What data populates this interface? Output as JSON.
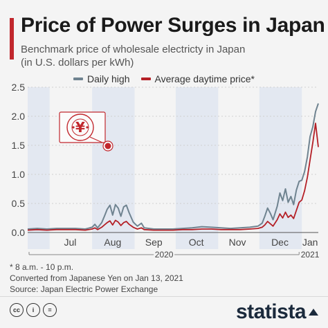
{
  "header": {
    "title": "Price of Power Surges in Japan",
    "subtitle_line1": "Benchmark price of wholesale electricty in Japan",
    "subtitle_line2": "(in U.S. dollars per kWh)"
  },
  "colors": {
    "accent": "#c1272d",
    "daily_high": "#6f8390",
    "average_daytime": "#b41f26",
    "month_band": "#e3e8f1",
    "brand": "#1b2a3c"
  },
  "icon": {
    "name": "yen-socket-icon"
  },
  "chart_data": {
    "type": "line",
    "x_unit": "date",
    "xlim": [
      "2020-06-15",
      "2021-01-13"
    ],
    "ylim": [
      0,
      2.5
    ],
    "yticks": [
      0.0,
      0.5,
      1.0,
      1.5,
      2.0,
      2.5
    ],
    "ytick_labels": [
      "0.0",
      "0.5",
      "1.0",
      "1.5",
      "2.0",
      "2.5"
    ],
    "grid": true,
    "legend_placement": "top-center",
    "month_labels": [
      {
        "label": "Jul",
        "center": "2020-07-16"
      },
      {
        "label": "Aug",
        "center": "2020-08-16"
      },
      {
        "label": "Sep",
        "center": "2020-09-15"
      },
      {
        "label": "Oct",
        "center": "2020-10-16"
      },
      {
        "label": "Nov",
        "center": "2020-11-15"
      },
      {
        "label": "Dec",
        "center": "2020-12-16"
      },
      {
        "label": "Jan",
        "center": "2021-01-07"
      }
    ],
    "shaded_months": [
      [
        "2020-06-15",
        "2020-07-01"
      ],
      [
        "2020-08-01",
        "2020-09-01"
      ],
      [
        "2020-10-01",
        "2020-11-01"
      ],
      [
        "2020-12-01",
        "2021-01-01"
      ]
    ],
    "year_labels": [
      {
        "label": "2020",
        "from": "2020-06-15",
        "to": "2020-12-31"
      },
      {
        "label": "2021",
        "from": "2021-01-01",
        "to": "2021-01-13"
      }
    ],
    "series": [
      {
        "name": "Daily high",
        "color": "#6f8390",
        "points": [
          [
            "2020-06-15",
            0.06
          ],
          [
            "2020-06-22",
            0.07
          ],
          [
            "2020-06-29",
            0.06
          ],
          [
            "2020-07-06",
            0.07
          ],
          [
            "2020-07-13",
            0.07
          ],
          [
            "2020-07-20",
            0.07
          ],
          [
            "2020-07-27",
            0.06
          ],
          [
            "2020-08-01",
            0.09
          ],
          [
            "2020-08-03",
            0.14
          ],
          [
            "2020-08-05",
            0.08
          ],
          [
            "2020-08-08",
            0.17
          ],
          [
            "2020-08-10",
            0.28
          ],
          [
            "2020-08-12",
            0.4
          ],
          [
            "2020-08-14",
            0.47
          ],
          [
            "2020-08-16",
            0.3
          ],
          [
            "2020-08-18",
            0.48
          ],
          [
            "2020-08-20",
            0.42
          ],
          [
            "2020-08-22",
            0.28
          ],
          [
            "2020-08-24",
            0.44
          ],
          [
            "2020-08-26",
            0.47
          ],
          [
            "2020-08-28",
            0.34
          ],
          [
            "2020-08-31",
            0.18
          ],
          [
            "2020-09-03",
            0.11
          ],
          [
            "2020-09-06",
            0.16
          ],
          [
            "2020-09-08",
            0.08
          ],
          [
            "2020-09-15",
            0.06
          ],
          [
            "2020-09-22",
            0.06
          ],
          [
            "2020-09-29",
            0.06
          ],
          [
            "2020-10-06",
            0.07
          ],
          [
            "2020-10-13",
            0.08
          ],
          [
            "2020-10-20",
            0.1
          ],
          [
            "2020-10-27",
            0.09
          ],
          [
            "2020-11-03",
            0.08
          ],
          [
            "2020-11-10",
            0.07
          ],
          [
            "2020-11-17",
            0.08
          ],
          [
            "2020-11-24",
            0.09
          ],
          [
            "2020-11-30",
            0.11
          ],
          [
            "2020-12-03",
            0.16
          ],
          [
            "2020-12-05",
            0.28
          ],
          [
            "2020-12-07",
            0.42
          ],
          [
            "2020-12-09",
            0.33
          ],
          [
            "2020-12-11",
            0.22
          ],
          [
            "2020-12-14",
            0.45
          ],
          [
            "2020-12-16",
            0.68
          ],
          [
            "2020-12-18",
            0.55
          ],
          [
            "2020-12-20",
            0.75
          ],
          [
            "2020-12-22",
            0.52
          ],
          [
            "2020-12-24",
            0.62
          ],
          [
            "2020-12-26",
            0.48
          ],
          [
            "2020-12-28",
            0.73
          ],
          [
            "2020-12-30",
            0.88
          ],
          [
            "2021-01-01",
            0.9
          ],
          [
            "2021-01-03",
            1.05
          ],
          [
            "2021-01-05",
            1.3
          ],
          [
            "2021-01-07",
            1.65
          ],
          [
            "2021-01-09",
            1.82
          ],
          [
            "2021-01-11",
            2.08
          ],
          [
            "2021-01-13",
            2.22
          ]
        ]
      },
      {
        "name": "Average daytime price*",
        "color": "#b41f26",
        "points": [
          [
            "2020-06-15",
            0.04
          ],
          [
            "2020-06-22",
            0.05
          ],
          [
            "2020-06-29",
            0.04
          ],
          [
            "2020-07-06",
            0.05
          ],
          [
            "2020-07-13",
            0.05
          ],
          [
            "2020-07-20",
            0.05
          ],
          [
            "2020-07-27",
            0.04
          ],
          [
            "2020-08-01",
            0.06
          ],
          [
            "2020-08-03",
            0.08
          ],
          [
            "2020-08-05",
            0.05
          ],
          [
            "2020-08-08",
            0.09
          ],
          [
            "2020-08-10",
            0.13
          ],
          [
            "2020-08-12",
            0.17
          ],
          [
            "2020-08-14",
            0.2
          ],
          [
            "2020-08-16",
            0.13
          ],
          [
            "2020-08-18",
            0.21
          ],
          [
            "2020-08-20",
            0.18
          ],
          [
            "2020-08-22",
            0.12
          ],
          [
            "2020-08-24",
            0.17
          ],
          [
            "2020-08-26",
            0.19
          ],
          [
            "2020-08-28",
            0.14
          ],
          [
            "2020-08-31",
            0.09
          ],
          [
            "2020-09-03",
            0.06
          ],
          [
            "2020-09-06",
            0.08
          ],
          [
            "2020-09-08",
            0.05
          ],
          [
            "2020-09-15",
            0.04
          ],
          [
            "2020-09-22",
            0.04
          ],
          [
            "2020-09-29",
            0.04
          ],
          [
            "2020-10-06",
            0.05
          ],
          [
            "2020-10-13",
            0.05
          ],
          [
            "2020-10-20",
            0.06
          ],
          [
            "2020-10-27",
            0.06
          ],
          [
            "2020-11-03",
            0.05
          ],
          [
            "2020-11-10",
            0.05
          ],
          [
            "2020-11-17",
            0.05
          ],
          [
            "2020-11-24",
            0.06
          ],
          [
            "2020-11-30",
            0.07
          ],
          [
            "2020-12-03",
            0.09
          ],
          [
            "2020-12-05",
            0.13
          ],
          [
            "2020-12-07",
            0.19
          ],
          [
            "2020-12-09",
            0.15
          ],
          [
            "2020-12-11",
            0.11
          ],
          [
            "2020-12-14",
            0.22
          ],
          [
            "2020-12-16",
            0.32
          ],
          [
            "2020-12-18",
            0.25
          ],
          [
            "2020-12-20",
            0.35
          ],
          [
            "2020-12-22",
            0.26
          ],
          [
            "2020-12-24",
            0.3
          ],
          [
            "2020-12-26",
            0.24
          ],
          [
            "2020-12-28",
            0.38
          ],
          [
            "2020-12-30",
            0.52
          ],
          [
            "2021-01-01",
            0.56
          ],
          [
            "2021-01-03",
            0.72
          ],
          [
            "2021-01-05",
            0.95
          ],
          [
            "2021-01-07",
            1.25
          ],
          [
            "2021-01-09",
            1.55
          ],
          [
            "2021-01-11",
            1.88
          ],
          [
            "2021-01-13",
            1.47
          ]
        ]
      }
    ]
  },
  "footnotes": {
    "note1": "* 8 a.m. - 10 p.m.",
    "note2": "Converted from Japanese Yen on Jan 13, 2021",
    "source": "Source: Japan Electric Power Exchange"
  },
  "footer": {
    "cc_icons": [
      "cc-icon",
      "attribution-icon",
      "no-derivatives-icon"
    ],
    "cc_labels": [
      "cc",
      "i",
      "="
    ],
    "brand": "statista"
  }
}
